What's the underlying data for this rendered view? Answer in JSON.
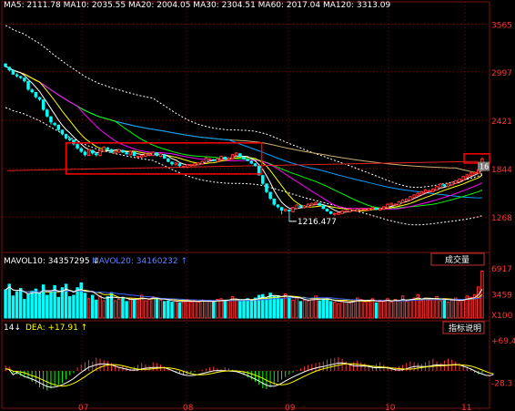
{
  "chart_data": {
    "type": "candlestick",
    "colors": {
      "background": "#000000",
      "up": "#ff3333",
      "down": "#00ffff",
      "grid": "#7a1010",
      "axis_text": "#ff3333",
      "highlight_box": "#ff0000",
      "ma5": "#ffffff",
      "ma10": "#ffff00",
      "ma20": "#ff00ff",
      "ma30": "#00ff00",
      "ma60": "#00a0ff",
      "ma120": "#c8b070",
      "envelope": "#ffffff",
      "trend": "#e02020",
      "vol_mavol10": "#ffff00",
      "vol_mavol20": "#4060ff",
      "macd_dif": "#ffffff",
      "macd_dea": "#ffff00"
    },
    "price_panel": {
      "y_ticks": [
        "3565",
        "2997",
        "2421",
        "1844",
        "1268"
      ],
      "ylim": [
        900,
        3700
      ],
      "annotation_low": "1216.477",
      "last_price_label": "16",
      "top_legend_visible": "MA5: 2111.78 MA10: 2035.55 MA20: 2004.05 MA30: 2304.51 MA60: 2017.04 MA120: 3313.09"
    },
    "x_ticks": [
      "07",
      "08",
      "09",
      "10",
      "11"
    ],
    "candles": {
      "open": [
        3090,
        3050,
        3010,
        2960,
        2940,
        2920,
        2880,
        2780,
        2750,
        2690,
        2660,
        2540,
        2460,
        2380,
        2360,
        2300,
        2250,
        2200,
        2180,
        2130,
        2080,
        2040,
        2000,
        2060,
        2020,
        2000,
        2050,
        2090,
        2070,
        2030,
        2040,
        2060,
        2030,
        2010,
        2040,
        1990,
        1980,
        1990,
        2010,
        2000,
        2030,
        1990,
        2010,
        1960,
        1920,
        1890,
        1900,
        1870,
        1860,
        1880,
        1880,
        1890,
        1900,
        1920,
        1960,
        1950,
        1930,
        1950,
        1980,
        1950,
        1960,
        2000,
        2020,
        1980,
        1950,
        1930,
        1900,
        1870,
        1760,
        1660,
        1560,
        1480,
        1410,
        1380,
        1340,
        1350,
        1330,
        1370,
        1400,
        1380,
        1390,
        1410,
        1420,
        1430,
        1400,
        1360,
        1330,
        1300,
        1300,
        1310,
        1330,
        1330,
        1350,
        1340,
        1350,
        1360,
        1350,
        1360,
        1370,
        1350,
        1360,
        1380,
        1410,
        1420,
        1410,
        1440,
        1460,
        1470,
        1500,
        1520,
        1540,
        1560,
        1580,
        1570,
        1590,
        1620,
        1650,
        1630,
        1650,
        1670,
        1690,
        1710,
        1740,
        1760,
        1780,
        1790,
        1820
      ],
      "close": [
        3060,
        3020,
        2970,
        2950,
        2930,
        2890,
        2790,
        2760,
        2700,
        2670,
        2550,
        2470,
        2400,
        2370,
        2310,
        2260,
        2210,
        2190,
        2140,
        2090,
        2050,
        2010,
        2070,
        2030,
        2010,
        2060,
        2100,
        2080,
        2040,
        2050,
        2070,
        2040,
        2020,
        2050,
        2000,
        1990,
        2000,
        2020,
        2010,
        2040,
        2000,
        2020,
        1970,
        1930,
        1900,
        1910,
        1880,
        1870,
        1890,
        1890,
        1900,
        1910,
        1930,
        1970,
        1960,
        1940,
        1960,
        1990,
        1960,
        1970,
        2010,
        2030,
        1990,
        1960,
        1940,
        1910,
        1880,
        1770,
        1670,
        1570,
        1490,
        1420,
        1390,
        1350,
        1360,
        1340,
        1380,
        1410,
        1390,
        1400,
        1420,
        1430,
        1440,
        1410,
        1370,
        1340,
        1310,
        1310,
        1320,
        1340,
        1340,
        1360,
        1350,
        1360,
        1370,
        1360,
        1370,
        1380,
        1360,
        1370,
        1390,
        1420,
        1430,
        1420,
        1450,
        1470,
        1480,
        1510,
        1530,
        1550,
        1570,
        1590,
        1580,
        1600,
        1630,
        1660,
        1640,
        1660,
        1680,
        1700,
        1720,
        1750,
        1770,
        1790,
        1800,
        1830,
        1960
      ],
      "high": [
        3100,
        3060,
        3030,
        2980,
        2950,
        2930,
        2890,
        2800,
        2760,
        2700,
        2670,
        2560,
        2470,
        2400,
        2370,
        2310,
        2260,
        2220,
        2190,
        2140,
        2100,
        2060,
        2080,
        2070,
        2040,
        2070,
        2110,
        2100,
        2080,
        2060,
        2080,
        2070,
        2040,
        2060,
        2050,
        2000,
        2010,
        2030,
        2030,
        2050,
        2040,
        2030,
        2020,
        1970,
        1930,
        1920,
        1910,
        1880,
        1900,
        1900,
        1910,
        1920,
        1940,
        1980,
        1970,
        1960,
        1970,
        2000,
        1990,
        1980,
        2020,
        2040,
        2030,
        1990,
        1960,
        1940,
        1910,
        1880,
        1770,
        1670,
        1570,
        1490,
        1420,
        1390,
        1370,
        1360,
        1390,
        1420,
        1410,
        1410,
        1430,
        1440,
        1450,
        1440,
        1410,
        1370,
        1340,
        1320,
        1330,
        1350,
        1350,
        1370,
        1360,
        1370,
        1380,
        1370,
        1380,
        1390,
        1380,
        1380,
        1400,
        1430,
        1440,
        1430,
        1460,
        1480,
        1490,
        1520,
        1540,
        1560,
        1580,
        1600,
        1600,
        1610,
        1640,
        1670,
        1660,
        1670,
        1690,
        1710,
        1730,
        1760,
        1780,
        1800,
        1810,
        1840,
        1980
      ],
      "low": [
        3050,
        3000,
        2960,
        2930,
        2910,
        2870,
        2770,
        2740,
        2680,
        2650,
        2530,
        2450,
        2370,
        2350,
        2290,
        2240,
        2190,
        2170,
        2120,
        2070,
        2030,
        1990,
        1990,
        2010,
        1990,
        1990,
        2040,
        2060,
        2030,
        2020,
        2030,
        2030,
        2010,
        2000,
        1990,
        1970,
        1970,
        1980,
        1990,
        1990,
        1990,
        1980,
        1960,
        1920,
        1880,
        1880,
        1860,
        1850,
        1850,
        1870,
        1870,
        1880,
        1890,
        1910,
        1940,
        1930,
        1920,
        1940,
        1950,
        1940,
        1950,
        1990,
        1980,
        1950,
        1930,
        1900,
        1870,
        1760,
        1650,
        1550,
        1470,
        1400,
        1370,
        1300,
        1330,
        1216,
        1320,
        1360,
        1380,
        1370,
        1380,
        1400,
        1410,
        1400,
        1360,
        1330,
        1300,
        1280,
        1290,
        1300,
        1320,
        1320,
        1340,
        1330,
        1340,
        1350,
        1340,
        1350,
        1350,
        1340,
        1350,
        1370,
        1400,
        1410,
        1400,
        1430,
        1450,
        1460,
        1490,
        1510,
        1530,
        1550,
        1570,
        1560,
        1580,
        1610,
        1630,
        1620,
        1640,
        1660,
        1680,
        1700,
        1730,
        1750,
        1770,
        1780,
        1810
      ]
    },
    "volume_panel": {
      "legend": [
        "MAVOL10: 34357295 ↓",
        "MAVOL20: 34160232 ↑"
      ],
      "y_ticks": [
        "6917",
        "3459",
        "X100"
      ],
      "ylim": [
        0,
        7000
      ],
      "selector": "成交量",
      "values": [
        4100,
        4900,
        3200,
        3800,
        4300,
        2700,
        3500,
        3900,
        4200,
        3600,
        4800,
        3300,
        3900,
        4700,
        3000,
        4400,
        4900,
        3100,
        3300,
        4400,
        5100,
        3600,
        2800,
        3300,
        2600,
        3200,
        2500,
        3100,
        3700,
        2500,
        2700,
        3000,
        2400,
        2900,
        2600,
        2800,
        3300,
        2500,
        2700,
        3100,
        2900,
        2600,
        2400,
        2500,
        2300,
        2600,
        2200,
        2400,
        2700,
        2300,
        2500,
        2300,
        2600,
        2500,
        2400,
        2300,
        2700,
        2800,
        2600,
        2600,
        3100,
        2700,
        2400,
        2600,
        2800,
        2600,
        2900,
        3300,
        3400,
        2900,
        3600,
        3100,
        3200,
        2800,
        3500,
        3100,
        2600,
        2900,
        2400,
        2600,
        2500,
        2800,
        3200,
        2500,
        2800,
        2700,
        2400,
        2300,
        2100,
        2500,
        2400,
        2200,
        2600,
        2900,
        2700,
        2300,
        2400,
        2800,
        2200,
        2600,
        2400,
        2800,
        2300,
        2700,
        2500,
        3200,
        2400,
        2600,
        2900,
        3400,
        2500,
        2900,
        2600,
        2800,
        3100,
        2500,
        2700,
        2300,
        2600,
        2900,
        2400,
        2700,
        3200,
        3000,
        3400,
        4500,
        6800
      ]
    },
    "macd_panel": {
      "legend": [
        "14↓",
        "DEA: +17.91 ↑"
      ],
      "y_ticks": [
        "+69.4",
        "-28.3"
      ],
      "ylim": [
        -80,
        80
      ],
      "button": "指标说明",
      "values": [
        12,
        10,
        -5,
        -8,
        -12,
        -15,
        -18,
        -25,
        -30,
        -38,
        -42,
        -45,
        -40,
        -35,
        -32,
        -28,
        -20,
        -10,
        -5,
        8,
        15,
        20,
        25,
        22,
        30,
        28,
        25,
        22,
        18,
        15,
        10,
        12,
        8,
        5,
        10,
        14,
        18,
        15,
        12,
        20,
        18,
        15,
        10,
        5,
        0,
        -4,
        -6,
        -10,
        -8,
        -5,
        -3,
        0,
        3,
        5,
        8,
        10,
        6,
        4,
        8,
        6,
        3,
        0,
        -5,
        -10,
        -15,
        -20,
        -25,
        -32,
        -40,
        -42,
        -38,
        -32,
        -26,
        -20,
        -14,
        -8,
        -4,
        2,
        6,
        10,
        14,
        16,
        18,
        20,
        22,
        26,
        28,
        30,
        32,
        28,
        22,
        16,
        20,
        24,
        20,
        18,
        15,
        12,
        16,
        20,
        14,
        10,
        6,
        8,
        10,
        14,
        18,
        22,
        20,
        18,
        16,
        20,
        24,
        28,
        22,
        18,
        24,
        28,
        26,
        22,
        18,
        14,
        10,
        6,
        -4,
        -8,
        -5,
        -10,
        -8,
        8
      ]
    }
  }
}
